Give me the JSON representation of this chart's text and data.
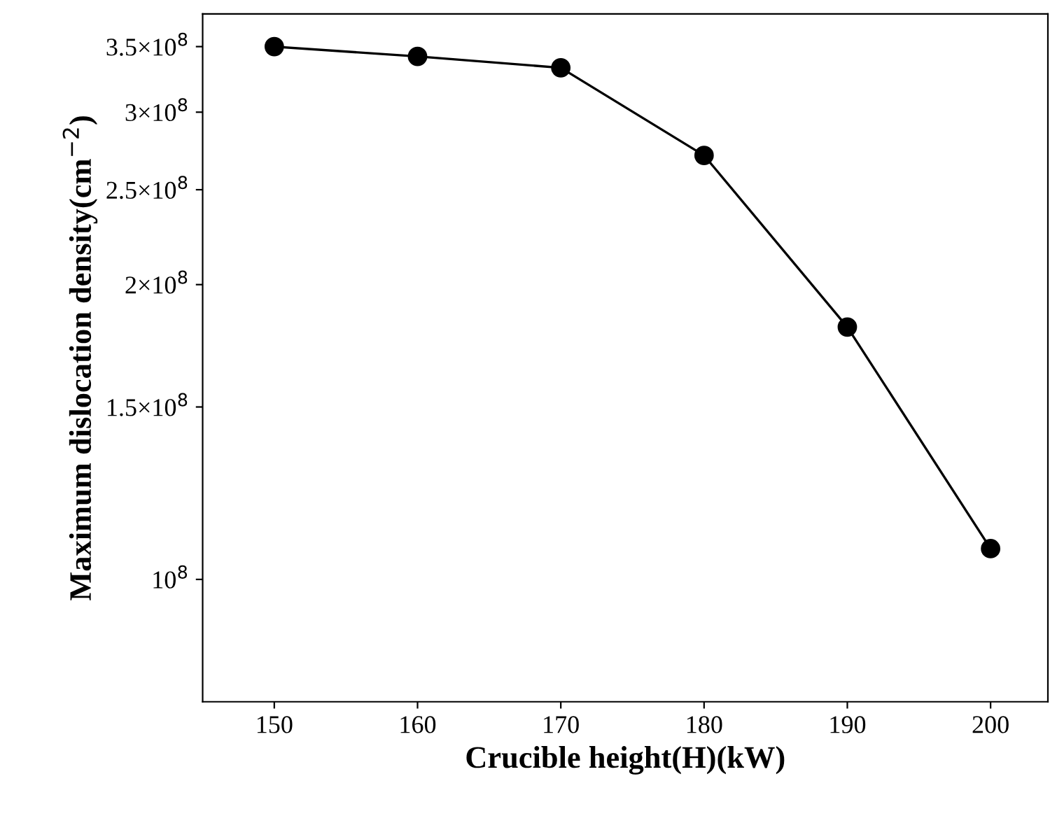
{
  "chart_data": {
    "type": "line",
    "xlabel": "Crucible height(H)(kW)",
    "ylabel": "Maximum dislocation density(cm$^{−2}$)",
    "x": [
      150,
      160,
      170,
      180,
      190,
      200
    ],
    "series": [
      {
        "color": "#000000",
        "values": [
          350000000,
          342000000,
          333000000,
          271000000,
          181000000,
          107500000
        ]
      }
    ],
    "log": "y",
    "marker": "circle",
    "line_style": "solid",
    "grid": false,
    "legend": false,
    "xlim": [
      145,
      204
    ],
    "xticks": [
      150,
      160,
      170,
      180,
      190,
      200
    ],
    "ylim": [
      75000000,
      378000000
    ],
    "yticks": [
      {
        "value": 100000000,
        "label": "10$^{8}$"
      },
      {
        "value": 150000000,
        "label": "1.5×10$^{8}$"
      },
      {
        "value": 200000000,
        "label": "2×10$^{8}$"
      },
      {
        "value": 250000000,
        "label": "2.5×10$^{8}$"
      },
      {
        "value": 300000000,
        "label": "3×10$^{8}$"
      },
      {
        "value": 350000000,
        "label": "3.5×10$^{8}$"
      }
    ]
  }
}
